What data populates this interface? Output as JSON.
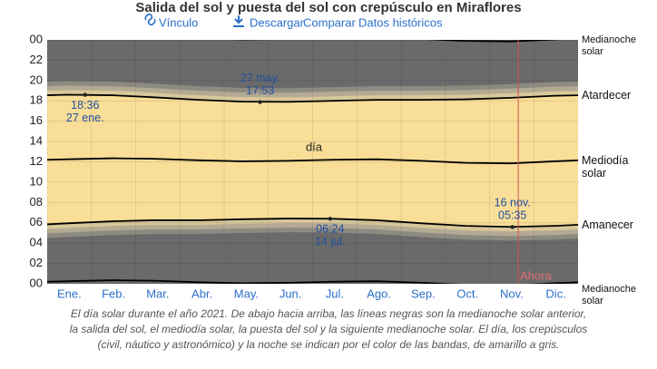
{
  "chart_data": {
    "type": "line",
    "title": "Salida del sol y puesta del sol con crepúsculo en Miraflores",
    "links": [
      "Vínculo",
      "Descargar",
      "Comparar",
      "Datos históricos"
    ],
    "categories": [
      "Ene.",
      "Feb.",
      "Mar.",
      "Abr.",
      "May.",
      "Jun.",
      "Jul.",
      "Ago.",
      "Sep.",
      "Oct.",
      "Nov.",
      "Dic."
    ],
    "x": [
      1,
      15,
      46,
      74,
      105,
      135,
      166,
      196,
      227,
      258,
      288,
      319,
      349,
      365
    ],
    "xlim": [
      1,
      365
    ],
    "series": [
      {
        "name": "Medianoche solar",
        "color": "#000000",
        "values": [
          0.2,
          0.25,
          0.35,
          0.3,
          0.15,
          0.05,
          0.1,
          0.2,
          0.25,
          0.1,
          -0.1,
          -0.15,
          0.05,
          0.15
        ]
      },
      {
        "name": "Amanecer",
        "color": "#000000",
        "values": [
          5.85,
          5.95,
          6.15,
          6.25,
          6.25,
          6.35,
          6.42,
          6.4,
          6.25,
          5.95,
          5.7,
          5.6,
          5.7,
          5.8
        ]
      },
      {
        "name": "Mediodía solar",
        "color": "#000000",
        "values": [
          12.2,
          12.25,
          12.35,
          12.3,
          12.15,
          12.05,
          12.1,
          12.2,
          12.25,
          12.1,
          11.9,
          11.85,
          12.05,
          12.15
        ]
      },
      {
        "name": "Atardecer",
        "color": "#000000",
        "values": [
          18.55,
          18.6,
          18.55,
          18.35,
          18.1,
          17.92,
          17.9,
          18.0,
          18.1,
          18.1,
          18.15,
          18.3,
          18.5,
          18.55
        ]
      },
      {
        "name": "Medianoche solar",
        "color": "#000000",
        "values": [
          24.2,
          24.25,
          24.35,
          24.3,
          24.15,
          24.05,
          24.1,
          24.2,
          24.25,
          24.1,
          23.9,
          23.85,
          24.05,
          24.15
        ]
      }
    ],
    "ylim": [
      0,
      24
    ],
    "yticks": [
      {
        "value": 0,
        "label": "00"
      },
      {
        "value": 2,
        "label": "02"
      },
      {
        "value": 4,
        "label": "04"
      },
      {
        "value": 6,
        "label": "06"
      },
      {
        "value": 8,
        "label": "08"
      },
      10,
      12,
      14,
      16,
      18,
      20,
      22,
      {
        "value": 24,
        "label": "00"
      }
    ],
    "annotations": [
      {
        "day": 27,
        "value": 18.6,
        "time": "18:36",
        "date": "27 ene.",
        "position": "below"
      },
      {
        "day": 147,
        "value": 17.883,
        "time": "17:53",
        "date": "27 may.",
        "position": "above"
      },
      {
        "day": 195,
        "value": 6.4,
        "time": "06:24",
        "date": "14 jul.",
        "position": "below"
      },
      {
        "day": 320,
        "value": 5.583,
        "time": "05:35",
        "date": "16 nov.",
        "position": "above"
      }
    ],
    "day_label": "día",
    "now": {
      "label": "Ahora",
      "day": 324
    },
    "caption": [
      "El día solar durante el año 2021. De abajo hacia arriba, las líneas negras son la medianoche solar anterior,",
      "la salida del sol, el mediodía solar, la puesta del sol y la siguiente medianoche solar. El día, los crepúsculos",
      "(civil, náutico y astronómico) y la noche se indican por el color de las bandas, de amarillo a gris."
    ]
  }
}
